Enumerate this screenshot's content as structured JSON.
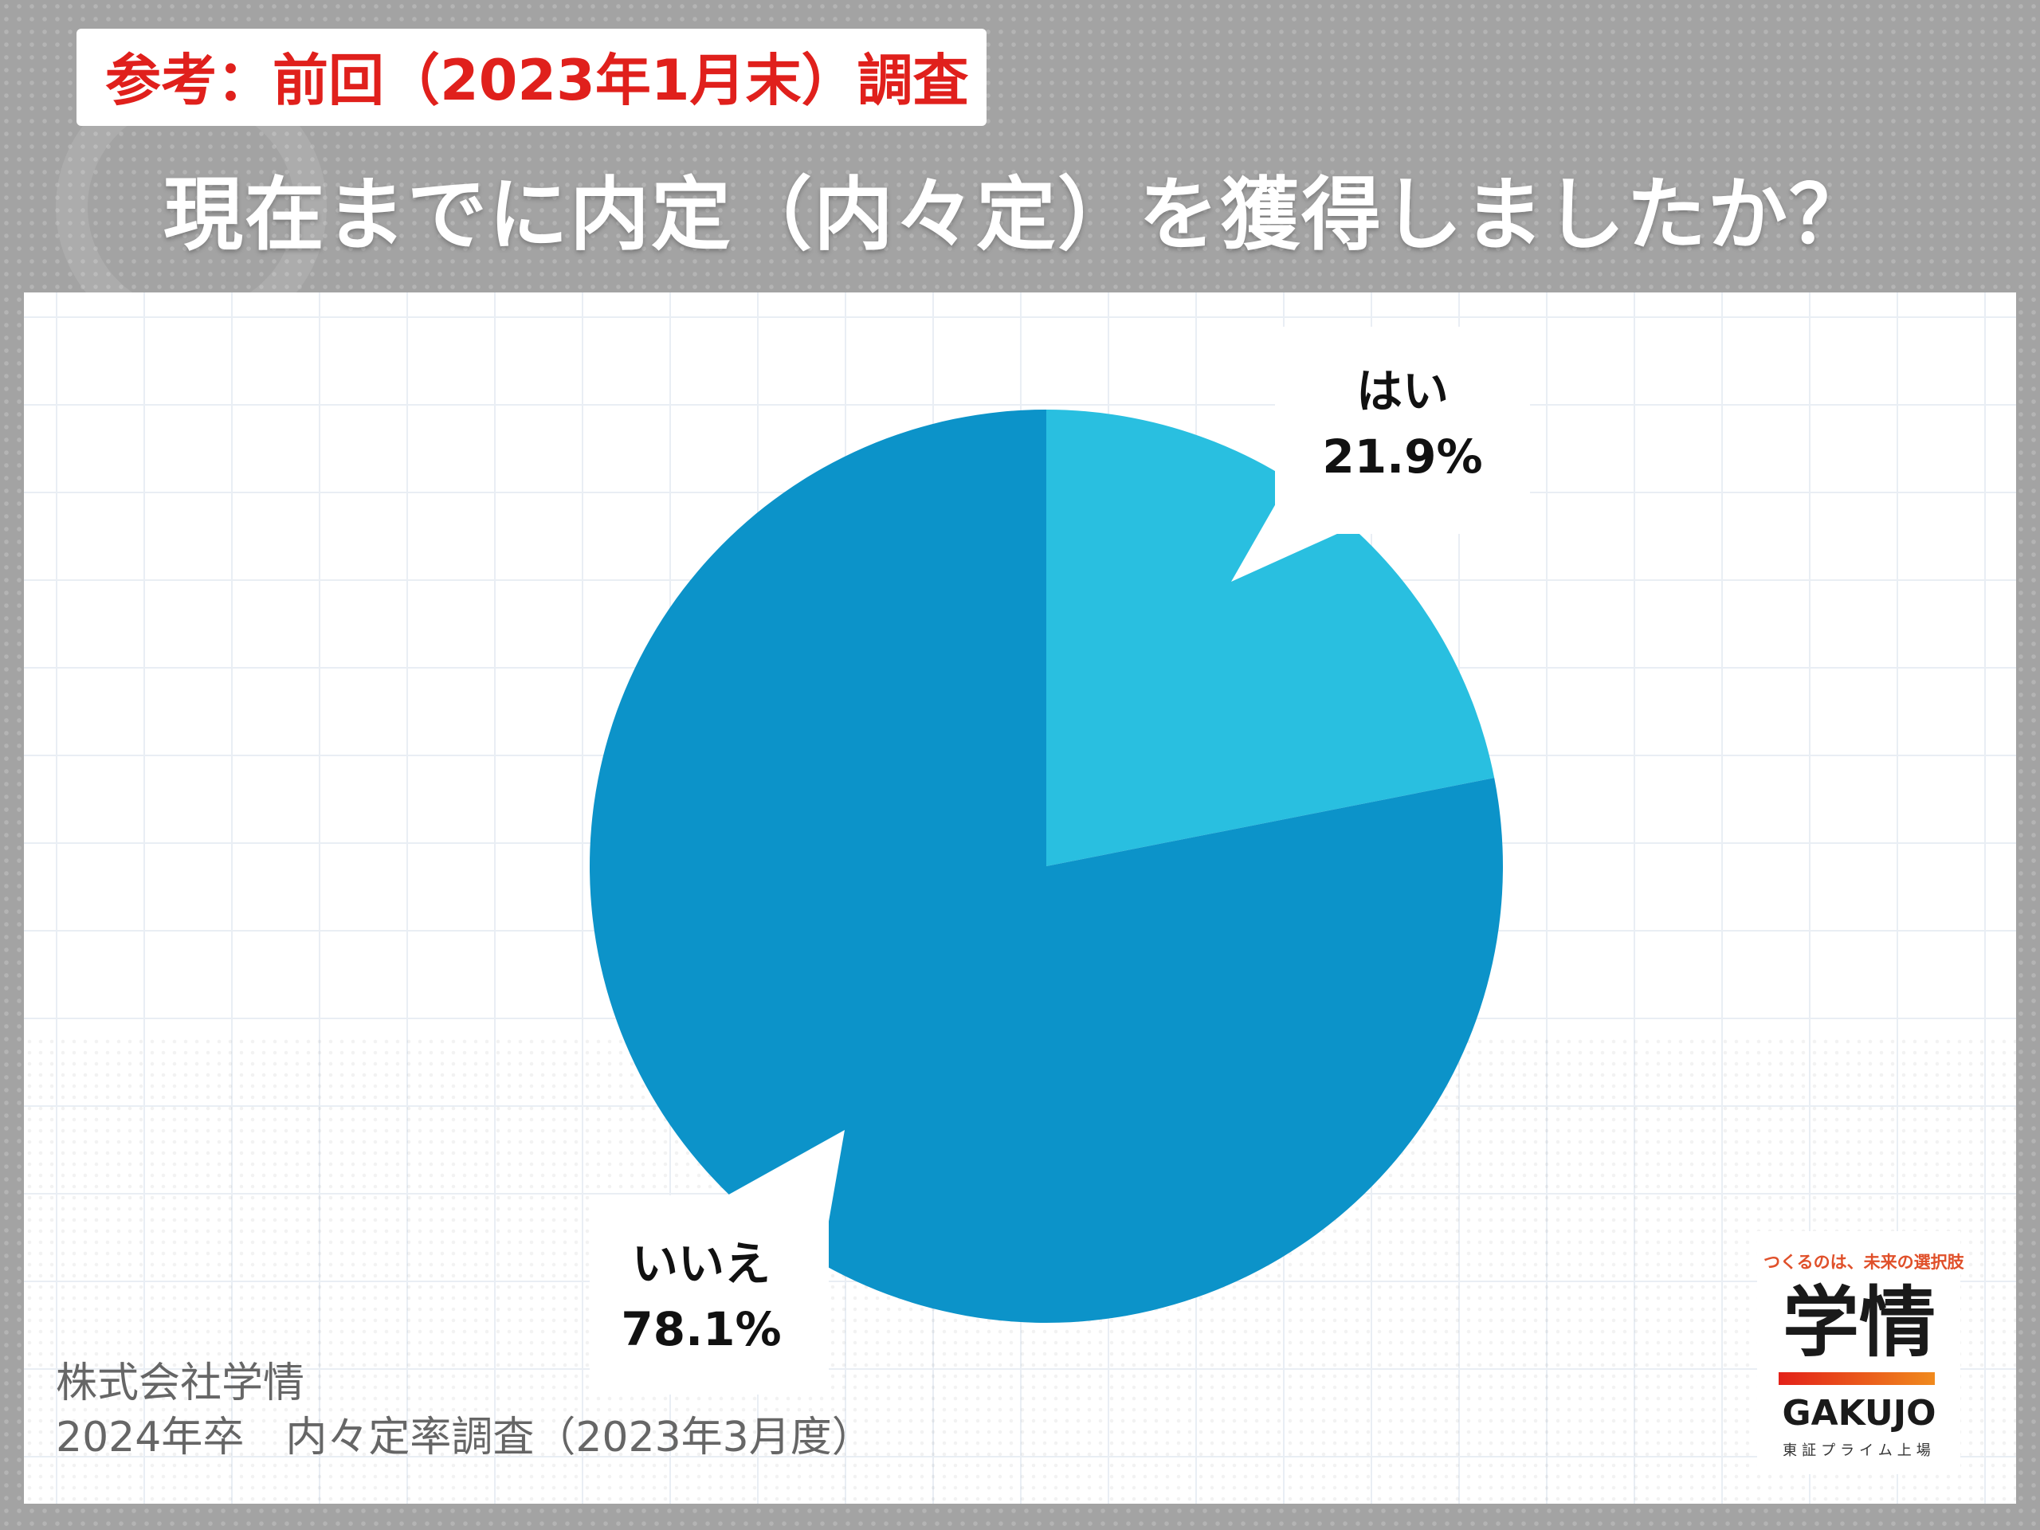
{
  "header": {
    "tag": "参考：前回（2023年1月末）調査",
    "question": "現在までに内定（内々定）を獲得しましたか？"
  },
  "chart_data": {
    "type": "pie",
    "title": "現在までに内定（内々定）を獲得しましたか？",
    "categories": [
      "はい",
      "いいえ"
    ],
    "values": [
      21.9,
      78.1
    ],
    "value_labels": [
      "21.9%",
      "78.1%"
    ],
    "unit": "%",
    "colors": [
      "#29bfe0",
      "#0c93c9"
    ]
  },
  "source": {
    "line1": "株式会社学情",
    "line2": "2024年卒　内々定率調査（2023年3月度）"
  },
  "logo": {
    "tagline": "つくるのは、未来の選択肢",
    "name": "学情",
    "name_en": "GAKUJO",
    "sub": "東証プライム上場"
  }
}
